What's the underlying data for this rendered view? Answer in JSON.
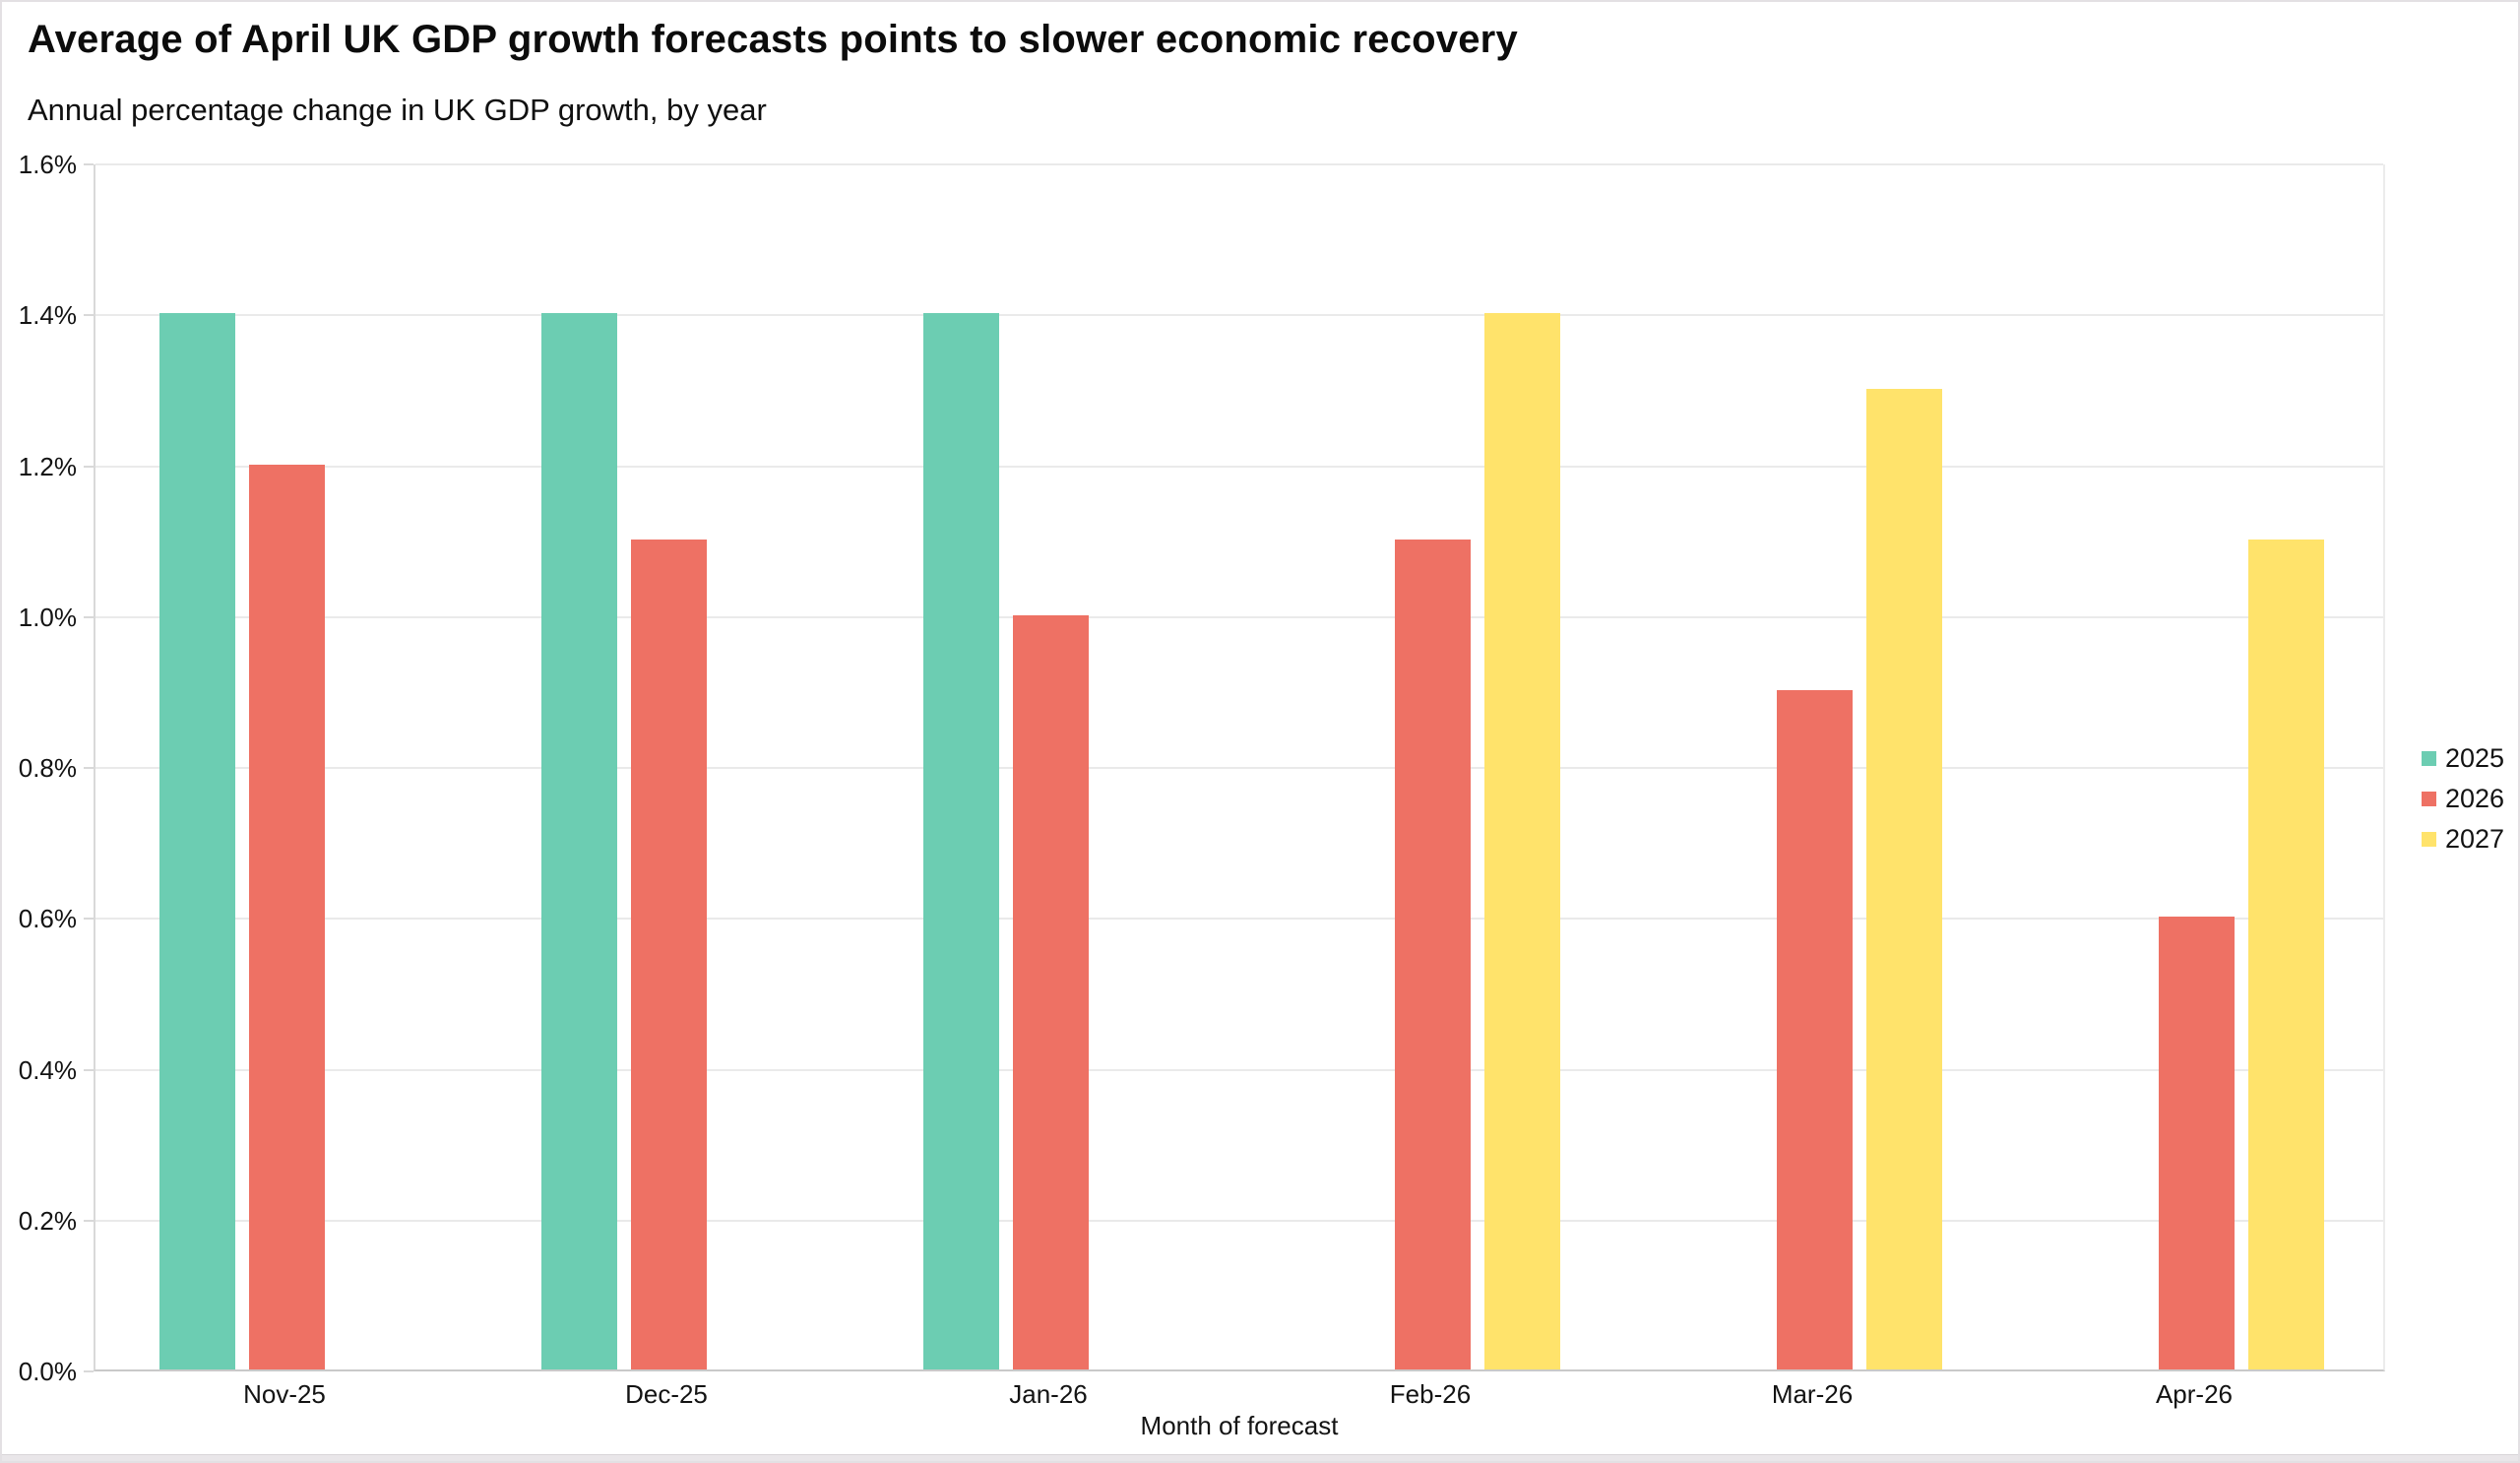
{
  "header": {
    "title": "Average of April UK GDP growth forecasts points to slower economic recovery",
    "subtitle": "Annual percentage change in UK GDP growth, by year"
  },
  "chart_data": {
    "type": "bar",
    "title": "Average of April UK GDP growth forecasts points to slower economic recovery",
    "subtitle": "Annual percentage change in UK GDP growth, by year",
    "categories": [
      "Nov-25",
      "Dec-25",
      "Jan-26",
      "Feb-26",
      "Mar-26",
      "Apr-26"
    ],
    "series": [
      {
        "name": "2025",
        "color": "#6CCDB2",
        "values": [
          1.4,
          1.4,
          1.4,
          null,
          null,
          null
        ]
      },
      {
        "name": "2026",
        "color": "#EE7164",
        "values": [
          1.2,
          1.1,
          1.0,
          1.1,
          0.9,
          0.6
        ]
      },
      {
        "name": "2027",
        "color": "#FFE36B",
        "values": [
          null,
          null,
          null,
          1.4,
          1.3,
          1.1
        ]
      }
    ],
    "xlabel": "Month of forecast",
    "ylabel": "",
    "unit": "%",
    "ylim": [
      0,
      1.6
    ],
    "yticks": [
      {
        "value": 0.0,
        "label": "0.0%"
      },
      {
        "value": 0.2,
        "label": "0.2%"
      },
      {
        "value": 0.4,
        "label": "0.4%"
      },
      {
        "value": 0.6,
        "label": "0.6%"
      },
      {
        "value": 0.8,
        "label": "0.8%"
      },
      {
        "value": 1.0,
        "label": "1.0%"
      },
      {
        "value": 1.2,
        "label": "1.2%"
      },
      {
        "value": 1.4,
        "label": "1.4%"
      },
      {
        "value": 1.6,
        "label": "1.6%"
      }
    ],
    "grid": true,
    "legend_position": "right"
  },
  "colors": {
    "grid": "#eaeaea",
    "axis": "#c9c9c9",
    "tick": "#d9d9d9",
    "text": "#131313",
    "page_border": "#e3e0e3"
  }
}
